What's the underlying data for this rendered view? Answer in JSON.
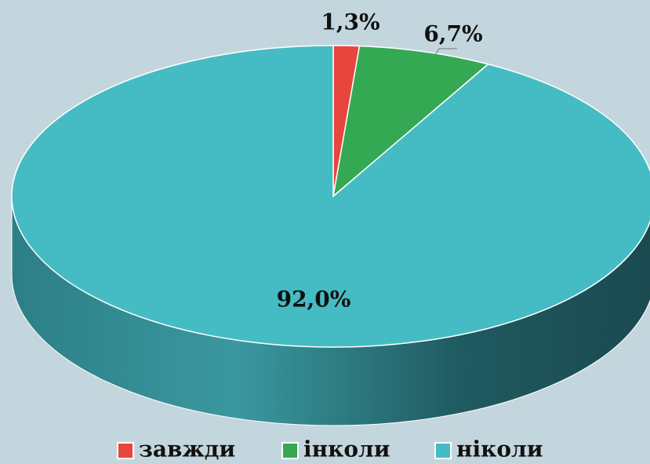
{
  "chart_data": {
    "type": "pie",
    "categories": [
      "завжди",
      "інколи",
      "ніколи"
    ],
    "values": [
      1.3,
      6.7,
      92.0
    ],
    "value_labels": [
      "1,3%",
      "6,7%",
      "92,0%"
    ],
    "colors": [
      "#e8453c",
      "#35a853",
      "#45bcc4"
    ],
    "legend": "bottom"
  }
}
